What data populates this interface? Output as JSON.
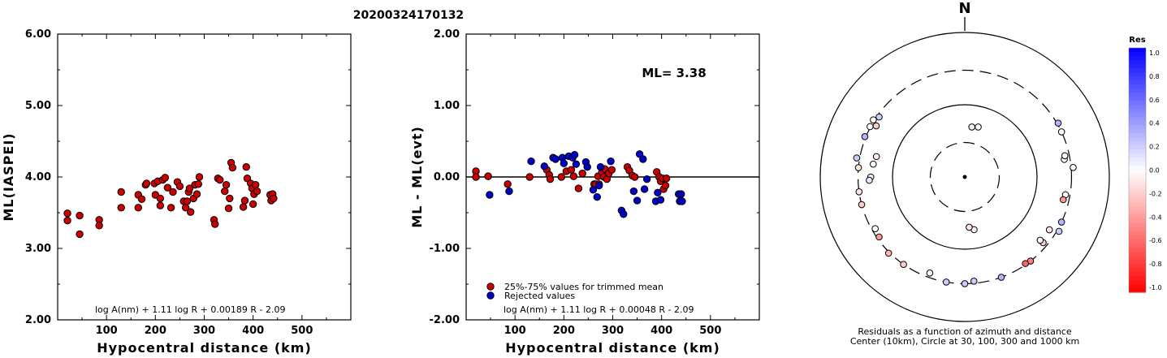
{
  "title": "20200324170132",
  "chart_data": [
    {
      "type": "scatter",
      "ylabel": "ML(IASPEI)",
      "xlabel": "Hypocentral distance (km)",
      "xlim": [
        0,
        600
      ],
      "ylim": [
        2.0,
        6.0
      ],
      "xticks": [
        "100",
        "200",
        "300",
        "400",
        "500"
      ],
      "yticks": [
        "2.00",
        "3.00",
        "4.00",
        "5.00",
        "6.00"
      ],
      "formula": "log A(nm) + 1.11 log R + 0.00189 R - 2.09",
      "series_color": "#cc0000",
      "points": [
        [
          20,
          3.49
        ],
        [
          20,
          3.39
        ],
        [
          45,
          3.46
        ],
        [
          45,
          3.2
        ],
        [
          85,
          3.4
        ],
        [
          85,
          3.32
        ],
        [
          130,
          3.79
        ],
        [
          130,
          3.57
        ],
        [
          165,
          3.75
        ],
        [
          165,
          3.57
        ],
        [
          172,
          3.69
        ],
        [
          180,
          3.89
        ],
        [
          182,
          3.91
        ],
        [
          198,
          3.91
        ],
        [
          200,
          3.75
        ],
        [
          205,
          3.94
        ],
        [
          210,
          3.7
        ],
        [
          210,
          3.6
        ],
        [
          215,
          3.96
        ],
        [
          220,
          3.99
        ],
        [
          225,
          3.85
        ],
        [
          232,
          3.57
        ],
        [
          236,
          3.79
        ],
        [
          245,
          3.93
        ],
        [
          250,
          3.87
        ],
        [
          258,
          3.66
        ],
        [
          262,
          3.57
        ],
        [
          265,
          3.66
        ],
        [
          268,
          3.79
        ],
        [
          270,
          3.84
        ],
        [
          272,
          3.51
        ],
        [
          278,
          3.7
        ],
        [
          281,
          3.89
        ],
        [
          285,
          3.76
        ],
        [
          288,
          3.9
        ],
        [
          290,
          4.0
        ],
        [
          320,
          3.4
        ],
        [
          322,
          3.34
        ],
        [
          328,
          3.98
        ],
        [
          332,
          3.96
        ],
        [
          342,
          3.8
        ],
        [
          345,
          3.89
        ],
        [
          350,
          3.56
        ],
        [
          352,
          3.7
        ],
        [
          355,
          4.2
        ],
        [
          358,
          4.13
        ],
        [
          380,
          3.58
        ],
        [
          383,
          3.67
        ],
        [
          386,
          4.14
        ],
        [
          388,
          3.98
        ],
        [
          395,
          3.91
        ],
        [
          398,
          3.84
        ],
        [
          400,
          3.62
        ],
        [
          402,
          3.76
        ],
        [
          405,
          3.89
        ],
        [
          408,
          3.8
        ],
        [
          435,
          3.75
        ],
        [
          437,
          3.67
        ],
        [
          440,
          3.76
        ],
        [
          442,
          3.7
        ]
      ]
    },
    {
      "type": "scatter",
      "ylabel": "ML - ML(evt)",
      "xlabel": "Hypocentral distance (km)",
      "xlim": [
        0,
        600
      ],
      "ylim": [
        -2.0,
        2.0
      ],
      "xticks": [
        "100",
        "200",
        "300",
        "400",
        "500"
      ],
      "yticks": [
        "-2.00",
        "-1.00",
        "0.00",
        "1.00",
        "2.00"
      ],
      "annotation": "ML= 3.38",
      "formula": "log A(nm) + 1.11 log R + 0.00048 R - 2.09",
      "reference_line": 0.0,
      "legend": [
        {
          "label": "25%-75% values for trimmed mean",
          "color": "#cc0000"
        },
        {
          "label": "Rejected values",
          "color": "#0000cc"
        }
      ],
      "series": [
        {
          "name": "25%-75% values for trimmed mean",
          "color": "#cc0000",
          "points": [
            [
              20,
              0.08
            ],
            [
              20,
              0.0
            ],
            [
              45,
              0.01
            ],
            [
              85,
              -0.1
            ],
            [
              130,
              0.0
            ],
            [
              165,
              0.1
            ],
            [
              170,
              0.03
            ],
            [
              172,
              -0.03
            ],
            [
              195,
              0.0
            ],
            [
              205,
              0.08
            ],
            [
              215,
              0.1
            ],
            [
              220,
              0.01
            ],
            [
              230,
              -0.16
            ],
            [
              238,
              0.05
            ],
            [
              262,
              -0.1
            ],
            [
              265,
              -0.1
            ],
            [
              270,
              0.01
            ],
            [
              272,
              -0.1
            ],
            [
              278,
              0.07
            ],
            [
              282,
              0.0
            ],
            [
              284,
              0.11
            ],
            [
              288,
              -0.03
            ],
            [
              292,
              0.05
            ],
            [
              298,
              0.1
            ],
            [
              330,
              0.14
            ],
            [
              334,
              0.09
            ],
            [
              340,
              0.02
            ],
            [
              345,
              0.0
            ],
            [
              390,
              0.07
            ],
            [
              395,
              0.0
            ],
            [
              398,
              -0.06
            ],
            [
              402,
              -0.02
            ],
            [
              404,
              -0.17
            ],
            [
              408,
              -0.12
            ],
            [
              410,
              -0.02
            ]
          ]
        },
        {
          "name": "Rejected values",
          "color": "#0000cc",
          "points": [
            [
              48,
              -0.25
            ],
            [
              88,
              -0.2
            ],
            [
              133,
              0.22
            ],
            [
              160,
              0.15
            ],
            [
              178,
              0.27
            ],
            [
              183,
              0.25
            ],
            [
              197,
              0.27
            ],
            [
              200,
              0.19
            ],
            [
              210,
              0.29
            ],
            [
              218,
              0.27
            ],
            [
              222,
              0.31
            ],
            [
              225,
              0.18
            ],
            [
              245,
              0.21
            ],
            [
              248,
              0.14
            ],
            [
              260,
              -0.18
            ],
            [
              268,
              -0.28
            ],
            [
              272,
              -0.12
            ],
            [
              275,
              0.14
            ],
            [
              296,
              0.22
            ],
            [
              318,
              -0.47
            ],
            [
              322,
              -0.52
            ],
            [
              343,
              -0.2
            ],
            [
              350,
              -0.33
            ],
            [
              355,
              0.32
            ],
            [
              362,
              0.25
            ],
            [
              365,
              -0.17
            ],
            [
              370,
              -0.03
            ],
            [
              388,
              -0.34
            ],
            [
              392,
              -0.22
            ],
            [
              398,
              -0.32
            ],
            [
              435,
              -0.24
            ],
            [
              437,
              -0.34
            ],
            [
              440,
              -0.24
            ],
            [
              442,
              -0.34
            ]
          ]
        }
      ]
    },
    {
      "type": "scatter",
      "subtype": "polar-residuals",
      "north_label": "N",
      "caption_line1": "Residuals as a function of azimuth and distance",
      "caption_line2": "Center (10km), Circle at 30, 100, 300 and 1000 km",
      "colorbar_title": "Res",
      "colorbar_ticks": [
        "1.0",
        "0.8",
        "0.6",
        "0.4",
        "0.2",
        "0.0",
        "-0.2",
        "-0.4",
        "-0.6",
        "-0.8",
        "-1.0"
      ],
      "rings_km": [
        30,
        100,
        300,
        1000
      ],
      "points": [
        {
          "az": 8,
          "dist": 50,
          "res": 0.05
        },
        {
          "az": 15,
          "dist": 52,
          "res": 0.0
        },
        {
          "az": 170,
          "dist": 55,
          "res": -0.05
        },
        {
          "az": 175,
          "dist": 50,
          "res": -0.1
        },
        {
          "az": 60,
          "dist": 310,
          "res": 0.3
        },
        {
          "az": 65,
          "dist": 300,
          "res": 0.0
        },
        {
          "az": 80,
          "dist": 250,
          "res": 0.0
        },
        {
          "az": 78,
          "dist": 260,
          "res": -0.05
        },
        {
          "az": 85,
          "dist": 320,
          "res": 0.0
        },
        {
          "az": 100,
          "dist": 260,
          "res": 0.0
        },
        {
          "az": 103,
          "dist": 250,
          "res": -0.4
        },
        {
          "az": 115,
          "dist": 300,
          "res": 0.3
        },
        {
          "az": 120,
          "dist": 320,
          "res": 0.2
        },
        {
          "az": 130,
          "dist": 260,
          "res": -0.2
        },
        {
          "az": 142,
          "dist": 300,
          "res": -0.5
        },
        {
          "az": 145,
          "dist": 290,
          "res": -0.6
        },
        {
          "az": 160,
          "dist": 300,
          "res": 0.3
        },
        {
          "az": 175,
          "dist": 280,
          "res": 0.2
        },
        {
          "az": 180,
          "dist": 300,
          "res": 0.2
        },
        {
          "az": 190,
          "dist": 300,
          "res": 0.2
        },
        {
          "az": 200,
          "dist": 260,
          "res": 0.0
        },
        {
          "az": 215,
          "dist": 300,
          "res": -0.2
        },
        {
          "az": 225,
          "dist": 310,
          "res": -0.3
        },
        {
          "az": 235,
          "dist": 280,
          "res": -0.4
        },
        {
          "az": 240,
          "dist": 270,
          "res": 0.0
        },
        {
          "az": 255,
          "dist": 300,
          "res": -0.2
        },
        {
          "az": 262,
          "dist": 300,
          "res": -0.1
        },
        {
          "az": 275,
          "dist": 300,
          "res": -0.1
        },
        {
          "az": 280,
          "dist": 330,
          "res": 0.2
        },
        {
          "az": 292,
          "dist": 310,
          "res": 0.3
        },
        {
          "az": 298,
          "dist": 305,
          "res": 0.0
        },
        {
          "az": 302,
          "dist": 310,
          "res": 0.0
        },
        {
          "az": 305,
          "dist": 280,
          "res": 0.2
        },
        {
          "az": 270,
          "dist": 200,
          "res": -0.1
        },
        {
          "az": 268,
          "dist": 210,
          "res": 0.1
        },
        {
          "az": 300,
          "dist": 260,
          "res": -0.2
        },
        {
          "az": 283,
          "dist": 180,
          "res": -0.1
        },
        {
          "az": 278,
          "dist": 190,
          "res": 0.0
        },
        {
          "az": 130,
          "dist": 230,
          "res": 0.0
        },
        {
          "az": 122,
          "dist": 240,
          "res": -0.1
        }
      ]
    }
  ]
}
